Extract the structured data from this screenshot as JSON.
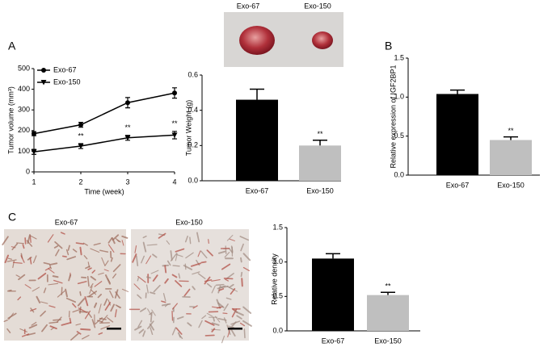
{
  "panel_labels": [
    "A",
    "B",
    "C"
  ],
  "photo_labels": {
    "tumor": [
      "Exo-67",
      "Exo-150"
    ],
    "staining": [
      "Exo-67",
      "Exo-150"
    ]
  },
  "chart_data": [
    {
      "type": "line",
      "x": [
        1,
        2,
        3,
        4
      ],
      "xlim": [
        1,
        4
      ],
      "xticks": [
        1,
        2,
        3,
        4
      ],
      "ylim": [
        0,
        500
      ],
      "yticks": [
        0,
        100,
        200,
        300,
        400,
        500
      ],
      "xlabel": "Time (week)",
      "ylabel": "Tumor volume (mm³)",
      "legend": "upper left",
      "series": [
        {
          "name": "Exo-67",
          "color": "#000000",
          "marker": "circle",
          "values": [
            185,
            228,
            335,
            382
          ],
          "errors": [
            10,
            12,
            25,
            25
          ]
        },
        {
          "name": "Exo-150",
          "color": "#000000",
          "marker": "triangle-down",
          "values": [
            97,
            125,
            165,
            178
          ],
          "errors": [
            12,
            12,
            12,
            18
          ],
          "significance": [
            null,
            "**",
            "**",
            "**"
          ]
        }
      ]
    },
    {
      "type": "bar",
      "categories": [
        "Exo-67",
        "Exo-150"
      ],
      "values": [
        0.46,
        0.2
      ],
      "errors": [
        0.06,
        0.03
      ],
      "colors": [
        "#000000",
        "#bfbfbf"
      ],
      "significance": [
        null,
        "**"
      ],
      "ylabel": "Tumor Weight (g)",
      "ylim": [
        0,
        0.6
      ],
      "yticks": [
        {
          "value": 0,
          "label": "0.0"
        },
        0.2,
        0.4,
        0.6
      ]
    },
    {
      "type": "bar",
      "categories": [
        "Exo-67",
        "Exo-150"
      ],
      "values": [
        1.04,
        0.45
      ],
      "errors": [
        0.05,
        0.04
      ],
      "colors": [
        "#000000",
        "#bfbfbf"
      ],
      "significance": [
        null,
        "**"
      ],
      "ylabel": "Relative expression of IGF2BP1",
      "ylim": [
        0,
        1.5
      ],
      "yticks": [
        {
          "value": 0,
          "label": "0.0"
        },
        0.5,
        {
          "value": 1,
          "label": "1.0"
        },
        1.5
      ]
    },
    {
      "type": "bar",
      "categories": [
        "Exo-67",
        "Exo-150"
      ],
      "values": [
        1.05,
        0.52
      ],
      "errors": [
        0.07,
        0.04
      ],
      "colors": [
        "#000000",
        "#bfbfbf"
      ],
      "significance": [
        null,
        "**"
      ],
      "ylabel": "Relative density",
      "ylim": [
        0,
        1.5
      ],
      "yticks": [
        {
          "value": 0,
          "label": "0.0"
        },
        0.5,
        {
          "value": 1,
          "label": "1.0"
        },
        1.5
      ]
    }
  ]
}
